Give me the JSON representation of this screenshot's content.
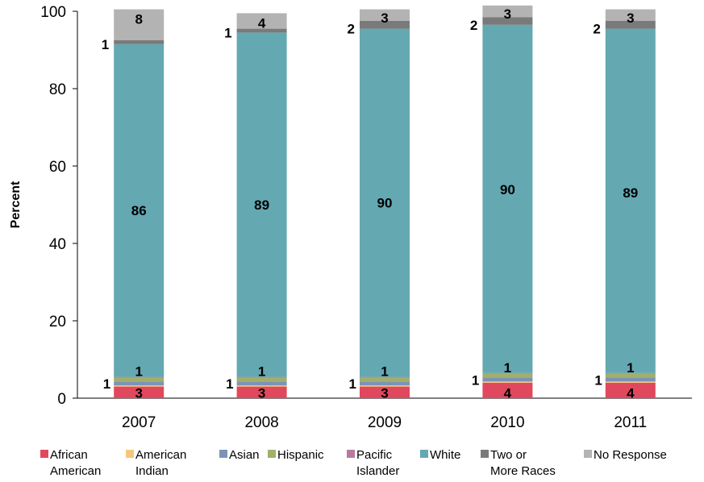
{
  "chart_data": {
    "type": "bar",
    "stacked": true,
    "ylabel": "Percent",
    "ylim": [
      0,
      100
    ],
    "yticks": [
      "0",
      "20",
      "40",
      "60",
      "80",
      "100"
    ],
    "grid": false,
    "legend_position": "bottom",
    "categories": [
      "2007",
      "2008",
      "2009",
      "2010",
      "2011"
    ],
    "series": [
      {
        "name": "African American",
        "name_lines": [
          "African",
          "American"
        ],
        "color": "#e0485e",
        "values": [
          3,
          3,
          3,
          4,
          4
        ],
        "labels": [
          "3",
          "3",
          "3",
          "4",
          "4"
        ]
      },
      {
        "name": "American Indian",
        "name_lines": [
          "American",
          "Indian"
        ],
        "color": "#f4c77e",
        "values": [
          0.3,
          0.3,
          0.3,
          0.3,
          0.3
        ],
        "labels": [
          "",
          "",
          "",
          "",
          ""
        ]
      },
      {
        "name": "Asian",
        "name_lines": [
          "Asian"
        ],
        "color": "#7c93b7",
        "values": [
          1,
          1,
          1,
          1,
          1
        ],
        "labels": [
          "1",
          "1",
          "1",
          "1",
          "1"
        ]
      },
      {
        "name": "Hispanic",
        "name_lines": [
          "Hispanic"
        ],
        "color": "#9fb06a",
        "values": [
          1,
          1,
          1,
          1,
          1
        ],
        "labels": [
          "1",
          "1",
          "1",
          "1",
          "1"
        ]
      },
      {
        "name": "Pacific Islander",
        "name_lines": [
          "Pacific",
          "Islander"
        ],
        "color": "#b77a9c",
        "values": [
          0.2,
          0.2,
          0.2,
          0.2,
          0.2
        ],
        "labels": [
          "",
          "",
          "",
          "",
          ""
        ]
      },
      {
        "name": "White",
        "name_lines": [
          "White"
        ],
        "color": "#64a8b2",
        "values": [
          86,
          89,
          90,
          90,
          89
        ],
        "labels": [
          "86",
          "89",
          "90",
          "90",
          "89"
        ]
      },
      {
        "name": "Two or More Races",
        "name_lines": [
          "Two or",
          "More Races"
        ],
        "color": "#7a7a7a",
        "values": [
          1,
          1,
          2,
          2,
          2
        ],
        "labels": [
          "1",
          "1",
          "2",
          "2",
          "2"
        ]
      },
      {
        "name": "No Response",
        "name_lines": [
          "No Response"
        ],
        "color": "#b3b3b3",
        "values": [
          8,
          4,
          3,
          3,
          3
        ],
        "labels": [
          "8",
          "4",
          "3",
          "3",
          "3"
        ]
      }
    ]
  }
}
